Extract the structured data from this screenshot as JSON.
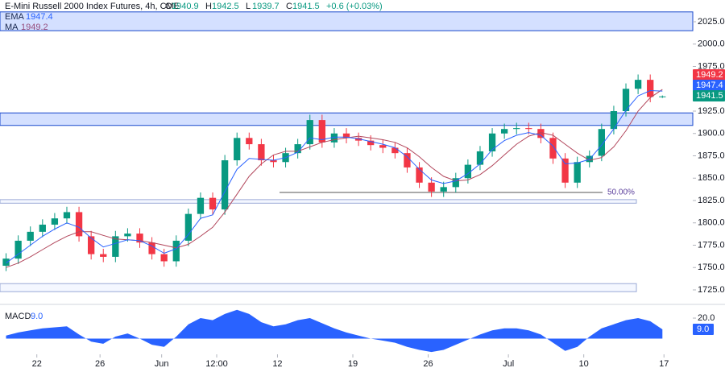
{
  "chart_data": {
    "type": "candlestick",
    "title": "E-Mini Russell 2000 Index Futures, 4h, CME",
    "ohlc_letters": [
      "O",
      "H",
      "L",
      "C"
    ],
    "change_text": "+0.6 (+0.03%)",
    "up_color": "#089981",
    "down_color": "#f23645",
    "xlim": [
      -0.5,
      56.5
    ],
    "ylim": [
      1710,
      2050
    ],
    "yticks": [
      {
        "value": 2025,
        "label": "2025.0"
      },
      {
        "value": 2000,
        "label": "2000.0"
      },
      {
        "value": 1975,
        "label": "1975.0"
      },
      {
        "value": 1950,
        "label": "1950.0"
      },
      {
        "value": 1925,
        "label": "1925.0"
      },
      {
        "value": 1900,
        "label": "1900.0"
      },
      {
        "value": 1875,
        "label": "1875.0"
      },
      {
        "value": 1850,
        "label": "1850.0"
      },
      {
        "value": 1825,
        "label": "1825.0"
      },
      {
        "value": 1800,
        "label": "1800.0"
      },
      {
        "value": 1775,
        "label": "1775.0"
      },
      {
        "value": 1750,
        "label": "1750.0"
      },
      {
        "value": 1725,
        "label": "1725.0"
      }
    ],
    "xticks": [
      {
        "value": 2.53,
        "label": "22"
      },
      {
        "value": 7.73,
        "label": "26"
      },
      {
        "value": 12.8,
        "label": "Jun"
      },
      {
        "value": 17.33,
        "label": "12:00"
      },
      {
        "value": 22.33,
        "label": "12"
      },
      {
        "value": 28.53,
        "label": "19"
      },
      {
        "value": 34.73,
        "label": "26"
      },
      {
        "value": 41.33,
        "label": "Jul"
      },
      {
        "value": 47.53,
        "label": "10"
      },
      {
        "value": 54.13,
        "label": "17"
      }
    ],
    "open": [
      1752,
      1760,
      1780,
      1790,
      1798,
      1805,
      1812,
      1785,
      1765,
      1762,
      1785,
      1788,
      1778,
      1765,
      1757,
      1780,
      1810,
      1828,
      1815,
      1870,
      1895,
      1888,
      1870,
      1868,
      1878,
      1888,
      1915,
      1890,
      1900,
      1895,
      1892,
      1887,
      1884,
      1878,
      1862,
      1845,
      1835,
      1840,
      1850,
      1865,
      1880,
      1900,
      1905,
      1906,
      1905,
      1895,
      1872,
      1845,
      1868,
      1875,
      1905,
      1925,
      1950,
      1960,
      1940.9
    ],
    "high": [
      1766,
      1786,
      1796,
      1804,
      1811,
      1818,
      1818,
      1791,
      1771,
      1791,
      1794,
      1794,
      1784,
      1771,
      1786,
      1816,
      1834,
      1834,
      1876,
      1901,
      1901,
      1894,
      1876,
      1884,
      1894,
      1921,
      1921,
      1906,
      1906,
      1901,
      1898,
      1893,
      1890,
      1884,
      1868,
      1851,
      1846,
      1856,
      1871,
      1886,
      1906,
      1911,
      1912,
      1912,
      1911,
      1901,
      1878,
      1874,
      1881,
      1911,
      1931,
      1956,
      1966,
      1966,
      1942.5
    ],
    "low": [
      1746,
      1754,
      1774,
      1784,
      1792,
      1799,
      1779,
      1759,
      1756,
      1756,
      1779,
      1772,
      1759,
      1751,
      1751,
      1774,
      1804,
      1809,
      1809,
      1864,
      1882,
      1864,
      1862,
      1862,
      1872,
      1882,
      1884,
      1884,
      1889,
      1886,
      1881,
      1878,
      1872,
      1856,
      1839,
      1829,
      1829,
      1834,
      1844,
      1859,
      1874,
      1894,
      1899,
      1899,
      1889,
      1866,
      1839,
      1839,
      1862,
      1869,
      1899,
      1919,
      1944,
      1934.9,
      1939.7
    ],
    "close": [
      1760,
      1780,
      1790,
      1798,
      1805,
      1812,
      1785,
      1765,
      1762,
      1785,
      1788,
      1778,
      1765,
      1757,
      1780,
      1810,
      1828,
      1815,
      1870,
      1895,
      1888,
      1870,
      1868,
      1878,
      1888,
      1915,
      1890,
      1900,
      1895,
      1892,
      1887,
      1884,
      1878,
      1862,
      1845,
      1835,
      1840,
      1850,
      1865,
      1880,
      1900,
      1905,
      1906,
      1905,
      1895,
      1872,
      1845,
      1868,
      1875,
      1905,
      1925,
      1950,
      1960,
      1940.9,
      1941.5
    ],
    "ema": {
      "name": "EMA",
      "color": "#2962ff",
      "values": [
        1755,
        1765,
        1775,
        1785,
        1793,
        1800,
        1795,
        1783,
        1773,
        1777,
        1781,
        1780,
        1774,
        1766,
        1771,
        1787,
        1805,
        1809,
        1835,
        1860,
        1872,
        1871,
        1870,
        1873,
        1879,
        1895,
        1893,
        1896,
        1896,
        1894,
        1891,
        1888,
        1884,
        1874,
        1860,
        1848,
        1844,
        1847,
        1855,
        1866,
        1882,
        1892,
        1898,
        1901,
        1898,
        1886,
        1866,
        1867,
        1871,
        1887,
        1905,
        1926,
        1942,
        1948,
        1947.4
      ]
    },
    "ma": {
      "name": "MA",
      "color": "#b2475c",
      "values": [
        1750,
        1755,
        1762,
        1770,
        1778,
        1785,
        1790,
        1790,
        1786,
        1782,
        1781,
        1780,
        1778,
        1775,
        1772,
        1776,
        1785,
        1795,
        1812,
        1832,
        1852,
        1866,
        1876,
        1880,
        1880,
        1885,
        1890,
        1893,
        1895,
        1897,
        1895,
        1893,
        1890,
        1884,
        1874,
        1862,
        1852,
        1847,
        1848,
        1854,
        1864,
        1876,
        1888,
        1897,
        1901,
        1898,
        1888,
        1878,
        1870,
        1873,
        1885,
        1903,
        1925,
        1940,
        1949.2
      ]
    },
    "bands": [
      [
        2036,
        2015
      ],
      [
        1923,
        1909
      ]
    ],
    "boxes": [
      [
        1826,
        1822
      ],
      [
        1732,
        1723
      ]
    ],
    "fib": {
      "price": 1834,
      "label": "50.00%"
    },
    "macd": {
      "name": "MACD",
      "color": "#2962ff",
      "value_label": "9.0",
      "ylim": [
        -15,
        30
      ],
      "yticks": [
        {
          "value": 20,
          "label": "20.0"
        }
      ],
      "values": [
        3,
        6,
        8,
        10,
        11,
        12,
        4,
        -3,
        -5,
        2,
        5,
        0,
        -6,
        -8,
        2,
        14,
        20,
        18,
        24,
        28,
        24,
        16,
        12,
        14,
        18,
        20,
        15,
        10,
        6,
        3,
        0,
        -2,
        -4,
        -8,
        -11,
        -13,
        -11,
        -6,
        -1,
        4,
        8,
        10,
        10,
        8,
        4,
        -4,
        -12,
        -8,
        2,
        10,
        14,
        18,
        20,
        17,
        9
      ]
    }
  }
}
